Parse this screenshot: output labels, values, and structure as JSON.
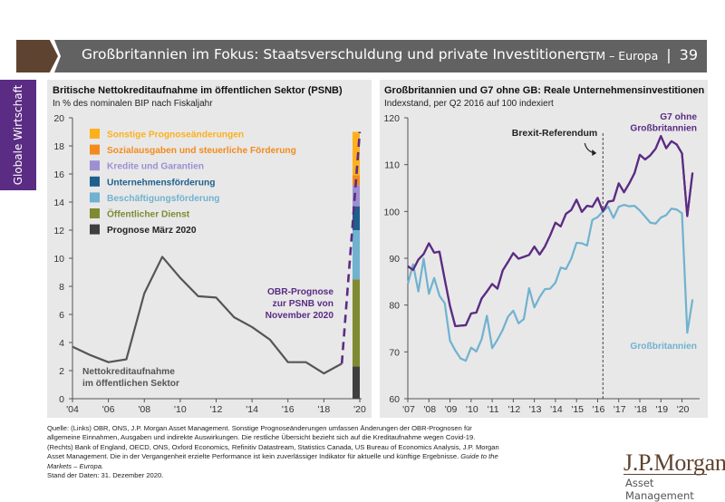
{
  "header": {
    "title": "Großbritannien im Fokus: Staatsverschuldung und private Investitionen",
    "series_label": "GTM – Europa",
    "separator": "|",
    "page_number": "39",
    "accent_color": "#5e4331",
    "bar_color": "#626262"
  },
  "sidebar": {
    "label": "Globale Wirtschaft",
    "color": "#5b2c83"
  },
  "footer": {
    "source_text": "Quelle: (Links) OBR, ONS, J.P. Morgan Asset Management. Sonstige Prognoseänderungen umfassen Änderungen der OBR-Prognosen für allgemeine Einnahmen, Ausgaben und indirekte Auswirkungen. Die restliche Übersicht bezieht sich auf die Kreditaufnahme wegen Covid-19. (Rechts) Bank of England, OECD, ONS, Oxford Economics, Refinitiv Datastream, Statistics Canada, US Bureau of Economics Analysis, J.P. Morgan Asset Management. Die in der Vergangenheit erzielte Performance ist kein zuverlässiger Indikator für aktuelle und künftige Ergebnisse. ",
    "guide_text": "Guide to the Markets – Europa.",
    "date_text": "Stand der Daten: 31. Dezember 2020."
  },
  "logo": {
    "name": "J.P.Morgan",
    "sub": "Asset Management"
  },
  "chart_data": [
    {
      "type": "line",
      "title": "Britische Nettokreditaufnahme im öffentlichen Sektor (PSNB)",
      "subtitle": "In % des nominalen BIP nach Fiskaljahr",
      "xlabel": "",
      "ylabel": "",
      "xlim": [
        2004,
        2020
      ],
      "ylim": [
        0,
        20
      ],
      "yticks": [
        0,
        2,
        4,
        6,
        8,
        10,
        12,
        14,
        16,
        18,
        20
      ],
      "xticks": [
        2004,
        2006,
        2008,
        2010,
        2012,
        2014,
        2016,
        2018,
        2020
      ],
      "xtick_labels": [
        "'04",
        "'06",
        "'08",
        "'10",
        "'12",
        "'14",
        "'16",
        "'18",
        "'20"
      ],
      "grid": false,
      "series": [
        {
          "name": "Nettokreditaufnahme im öffentlichen Sektor",
          "color": "#555555",
          "x": [
            2004,
            2005,
            2006,
            2007,
            2008,
            2009,
            2010,
            2011,
            2012,
            2013,
            2014,
            2015,
            2016,
            2017,
            2018,
            2019
          ],
          "values": [
            3.7,
            3.1,
            2.6,
            2.8,
            7.5,
            10.1,
            8.6,
            7.3,
            7.2,
            5.8,
            5.1,
            4.2,
            2.6,
            2.6,
            1.8,
            2.5
          ]
        },
        {
          "name": "OBR-Prognose zur PSNB von November 2020",
          "color": "#5b2c83",
          "dashed": true,
          "x": [
            2019,
            2020
          ],
          "values": [
            2.5,
            19.0
          ]
        }
      ],
      "stacked_bar": {
        "x": 2020,
        "segments": [
          {
            "name": "Prognose März 2020",
            "color": "#3f3f3f",
            "value": 2.3
          },
          {
            "name": "Öffentlicher Dienst",
            "color": "#7f8a33",
            "value": 6.2
          },
          {
            "name": "Beschäftigungsförderung",
            "color": "#70b2cf",
            "value": 3.5
          },
          {
            "name": "Unternehmensförderung",
            "color": "#1f5f8c",
            "value": 1.7
          },
          {
            "name": "Kredite und Garantien",
            "color": "#9e8fd2",
            "value": 1.5
          },
          {
            "name": "Sozialausgaben und steuerliche Förderung",
            "color": "#f38b1c",
            "value": 0.7
          },
          {
            "name": "Sonstige Prognoseänderungen",
            "color": "#fdb01c",
            "value": 3.1
          }
        ]
      },
      "legend": {
        "position": "top-left",
        "items": [
          {
            "label": "Sonstige Prognoseänderungen",
            "color": "#fdb01c"
          },
          {
            "label": "Sozialausgaben und steuerliche Förderung",
            "color": "#f38b1c"
          },
          {
            "label": "Kredite und Garantien",
            "color": "#9e8fd2"
          },
          {
            "label": "Unternehmensförderung",
            "color": "#1f5f8c"
          },
          {
            "label": "Beschäftigungsförderung",
            "color": "#70b2cf"
          },
          {
            "label": "Öffentlicher Dienst",
            "color": "#7f8a33"
          },
          {
            "label": "Prognose März 2020",
            "color": "#3f3f3f"
          }
        ]
      },
      "annotations": [
        {
          "text_lines": [
            "OBR-Prognose",
            "zur PSNB von",
            "November 2020"
          ],
          "color": "#5b2c83",
          "x": 2018.6,
          "y": 6.9
        },
        {
          "text_lines": [
            "Nettokreditaufnahme",
            "im öffentlichen Sektor"
          ],
          "color": "#555555",
          "x": 2004.6,
          "y": 1.8
        }
      ]
    },
    {
      "type": "line",
      "title": "Großbritannien und G7 ohne GB: Reale Unternehmensinvestitionen",
      "subtitle": "Indexstand, per Q2 2016 auf 100 indexiert",
      "xlabel": "",
      "ylabel": "",
      "xlim": [
        2007.0,
        2020.75
      ],
      "ylim": [
        60,
        120
      ],
      "yticks": [
        60,
        70,
        80,
        90,
        100,
        110,
        120
      ],
      "xticks": [
        2007,
        2008,
        2009,
        2010,
        2011,
        2012,
        2013,
        2014,
        2015,
        2016,
        2017,
        2018,
        2019,
        2020
      ],
      "xtick_labels": [
        "'07",
        "'08",
        "'09",
        "'10",
        "'11",
        "'12",
        "'13",
        "'14",
        "'15",
        "'16",
        "'17",
        "'18",
        "'19",
        "'20"
      ],
      "grid": false,
      "x_start": 2007.0,
      "x_step": 0.25,
      "series": [
        {
          "name": "G7 ohne Großbritannien",
          "color": "#5b2c83",
          "values": [
            88.3,
            87.5,
            89.7,
            90.9,
            93.2,
            91.2,
            91.4,
            85.5,
            79.8,
            75.5,
            75.6,
            75.7,
            78.2,
            78.4,
            81.4,
            82.9,
            84.5,
            83.5,
            87.4,
            89.2,
            91.1,
            89.9,
            90.3,
            90.7,
            92.5,
            90.8,
            92.5,
            94.9,
            97.6,
            96.8,
            99.5,
            100.3,
            102.5,
            99.9,
            101.2,
            101.0,
            102.9,
            100.0,
            102.1,
            102.3,
            106.0,
            104.1,
            106.0,
            108.2,
            112.1,
            111.1,
            112.0,
            113.4,
            116.1,
            113.5,
            115.0,
            114.3,
            112.4,
            99.0,
            108.3
          ]
        },
        {
          "name": "Großbritannien",
          "color": "#70b2cf",
          "values": [
            84.5,
            88.7,
            82.9,
            89.9,
            82.4,
            85.8,
            82.0,
            80.4,
            72.4,
            70.3,
            68.6,
            68.1,
            70.9,
            70.1,
            72.7,
            77.7,
            70.8,
            72.6,
            74.7,
            77.5,
            78.8,
            76.1,
            77.0,
            83.6,
            79.5,
            81.7,
            83.4,
            83.5,
            84.8,
            88.0,
            87.7,
            89.9,
            93.3,
            93.2,
            92.7,
            98.2,
            98.8,
            100.0,
            101.0,
            98.6,
            101.0,
            101.4,
            101.1,
            101.2,
            100.2,
            98.9,
            97.6,
            97.4,
            98.7,
            99.2,
            100.6,
            100.4,
            99.6,
            74.1,
            81.2
          ]
        }
      ],
      "reference_line": {
        "x": 2016.25,
        "label": "Brexit-Referendum",
        "style": "dashed"
      },
      "annotations": [
        {
          "text_lines": [
            "G7 ohne",
            "Großbritannien"
          ],
          "color": "#5b2c83",
          "position": "top-right"
        },
        {
          "text_lines": [
            "Großbritannien"
          ],
          "color": "#70b2cf",
          "position": "bottom-right"
        }
      ]
    }
  ]
}
